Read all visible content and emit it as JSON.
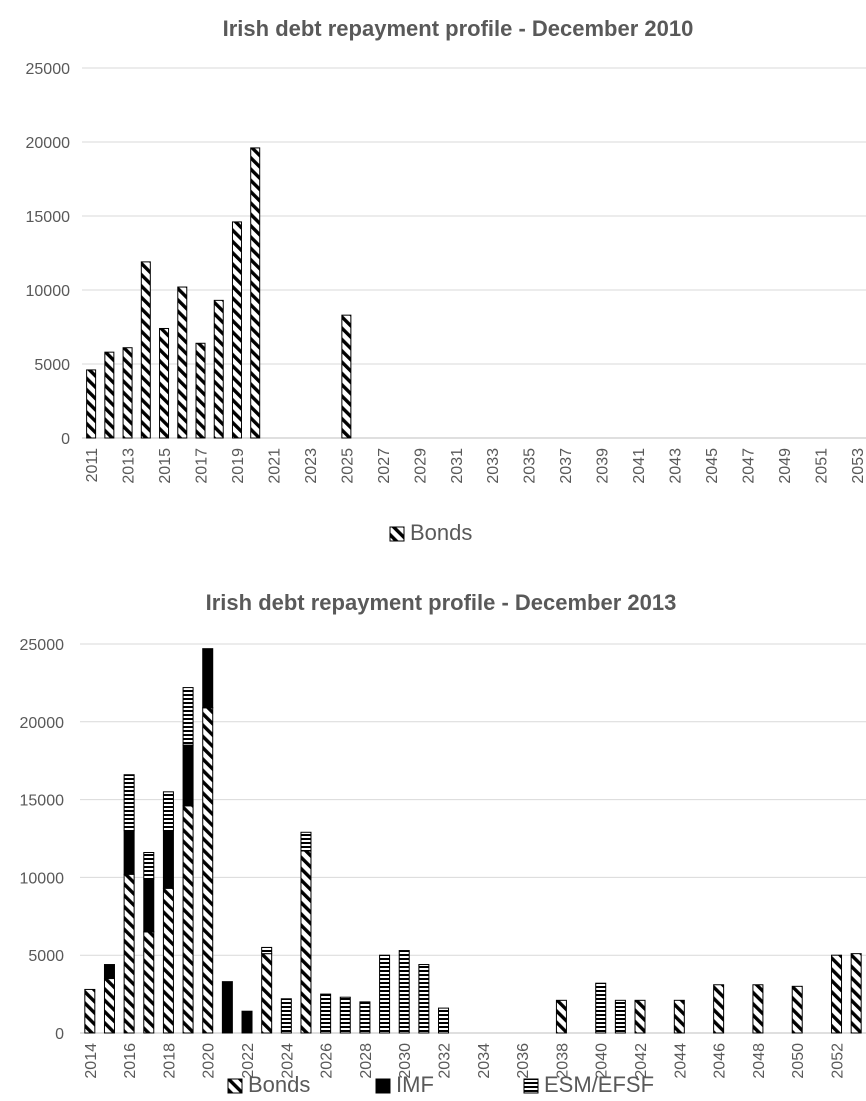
{
  "chart_data": [
    {
      "type": "bar",
      "title": "Irish debt repayment profile - December 2010",
      "xlabel": "",
      "ylabel": "",
      "ylim": [
        0,
        25000
      ],
      "yticks": [
        0,
        5000,
        10000,
        15000,
        20000,
        25000
      ],
      "xticks": [
        "2011",
        "2013",
        "2015",
        "2017",
        "2019",
        "2021",
        "2023",
        "2025",
        "2027",
        "2029",
        "2031",
        "2033",
        "2035",
        "2037",
        "2039",
        "2041",
        "2043",
        "2045",
        "2047",
        "2049",
        "2051",
        "2053"
      ],
      "grid": true,
      "legend_position": "bottom",
      "categories": [
        2011,
        2012,
        2013,
        2014,
        2015,
        2016,
        2017,
        2018,
        2019,
        2020,
        2021,
        2022,
        2023,
        2024,
        2025,
        2026,
        2027,
        2028,
        2029,
        2030,
        2031,
        2032,
        2033,
        2034,
        2035,
        2036,
        2037,
        2038,
        2039,
        2040,
        2041,
        2042,
        2043,
        2044,
        2045,
        2046,
        2047,
        2048,
        2049,
        2050,
        2051,
        2052,
        2053
      ],
      "series": [
        {
          "name": "Bonds",
          "pattern": "diagonal",
          "color": "#000000",
          "values": [
            4600,
            5800,
            6100,
            11900,
            7400,
            10200,
            6400,
            9300,
            14600,
            19600,
            0,
            0,
            0,
            0,
            8300,
            0,
            0,
            0,
            0,
            0,
            0,
            0,
            0,
            0,
            0,
            0,
            0,
            0,
            0,
            0,
            0,
            0,
            0,
            0,
            0,
            0,
            0,
            0,
            0,
            0,
            0,
            0,
            0
          ]
        }
      ]
    },
    {
      "type": "bar",
      "title": "Irish debt repayment profile  - December 2013",
      "xlabel": "",
      "ylabel": "",
      "ylim": [
        0,
        25000
      ],
      "yticks": [
        0,
        5000,
        10000,
        15000,
        20000,
        25000
      ],
      "xticks": [
        "2014",
        "2016",
        "2018",
        "2020",
        "2022",
        "2024",
        "2026",
        "2028",
        "2030",
        "2032",
        "2034",
        "2036",
        "2038",
        "2040",
        "2042",
        "2044",
        "2046",
        "2048",
        "2050",
        "2052"
      ],
      "grid": true,
      "legend_position": "bottom",
      "stacked": true,
      "categories": [
        2014,
        2015,
        2016,
        2017,
        2018,
        2019,
        2020,
        2021,
        2022,
        2023,
        2024,
        2025,
        2026,
        2027,
        2028,
        2029,
        2030,
        2031,
        2032,
        2033,
        2034,
        2035,
        2036,
        2037,
        2038,
        2039,
        2040,
        2041,
        2042,
        2043,
        2044,
        2045,
        2046,
        2047,
        2048,
        2049,
        2050,
        2051,
        2052,
        2053
      ],
      "series": [
        {
          "name": "Bonds",
          "pattern": "diagonal",
          "color": "#000000",
          "values": [
            2800,
            3500,
            10200,
            6500,
            9300,
            14600,
            20900,
            0,
            0,
            5100,
            0,
            11700,
            0,
            0,
            0,
            0,
            0,
            0,
            0,
            0,
            0,
            0,
            0,
            0,
            2100,
            0,
            0,
            0,
            2100,
            0,
            2100,
            0,
            3100,
            0,
            3100,
            0,
            3000,
            0,
            5000,
            5100
          ]
        },
        {
          "name": "IMF",
          "pattern": "solid",
          "color": "#000000",
          "values": [
            0,
            900,
            2800,
            3400,
            3700,
            3900,
            3800,
            3300,
            1400,
            0,
            0,
            0,
            0,
            0,
            0,
            0,
            0,
            0,
            0,
            0,
            0,
            0,
            0,
            0,
            0,
            0,
            0,
            0,
            0,
            0,
            0,
            0,
            0,
            0,
            0,
            0,
            0,
            0,
            0,
            0
          ]
        },
        {
          "name": "ESM/EFSF",
          "pattern": "horizontal",
          "color": "#000000",
          "values": [
            0,
            0,
            3600,
            1700,
            2500,
            3700,
            0,
            0,
            0,
            400,
            2200,
            1200,
            2500,
            2300,
            2000,
            5000,
            5300,
            4400,
            1600,
            0,
            0,
            0,
            0,
            0,
            0,
            0,
            3200,
            2100,
            0,
            0,
            0,
            0,
            0,
            0,
            0,
            0,
            0,
            0,
            0,
            0
          ]
        }
      ]
    }
  ]
}
